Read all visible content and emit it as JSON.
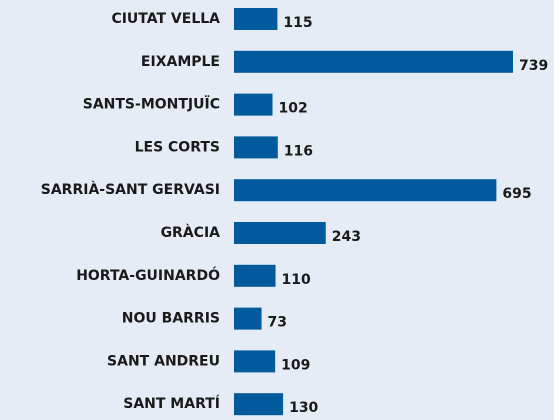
{
  "chart_data": {
    "type": "bar",
    "orientation": "horizontal",
    "categories": [
      "CIUTAT VELLA",
      "EIXAMPLE",
      "SANTS-MONTJUÏC",
      "LES CORTS",
      "SARRIÀ-SANT GERVASI",
      "GRÀCIA",
      "HORTA-GUINARDÓ",
      "NOU BARRIS",
      "SANT ANDREU",
      "SANT MARTÍ"
    ],
    "values": [
      115,
      739,
      102,
      116,
      695,
      243,
      110,
      73,
      109,
      130
    ],
    "color": "#005a9c"
  }
}
